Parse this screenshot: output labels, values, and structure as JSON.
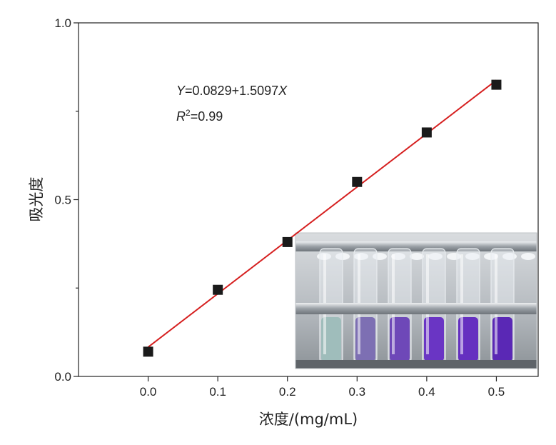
{
  "chart_data": {
    "type": "scatter",
    "xlabel": "浓度/(mg/mL)",
    "ylabel": "吸光度",
    "xlim": [
      -0.1,
      0.56
    ],
    "ylim": [
      0,
      1.0
    ],
    "x_ticks": [
      0.0,
      0.1,
      0.2,
      0.3,
      0.4,
      0.5
    ],
    "x_tick_labels": [
      "0.0",
      "0.1",
      "0.2",
      "0.3",
      "0.4",
      "0.5"
    ],
    "y_ticks": [
      0.0,
      0.25,
      0.5,
      0.75,
      1.0
    ],
    "y_tick_labels": [
      "0.0",
      "",
      "0.5",
      "",
      "1.0"
    ],
    "grid": false,
    "series": [
      {
        "marker": "square",
        "color": "#1a1a1a",
        "x": [
          0.0,
          0.1,
          0.2,
          0.3,
          0.4,
          0.5
        ],
        "y": [
          0.07,
          0.245,
          0.38,
          0.55,
          0.69,
          0.825
        ]
      }
    ],
    "fit_line": {
      "color": "#d62020",
      "intercept": 0.0829,
      "slope": 1.5097,
      "x_range": [
        0.0,
        0.5
      ]
    },
    "annotations": {
      "equation": {
        "y_var": "Y",
        "equals_text": "=0.0829+1.5097",
        "x_var": "X"
      },
      "r_squared": {
        "var": "R",
        "sup": "2",
        "value_text": "=0.99"
      }
    },
    "inset_photo": {
      "description": "test tubes in a metal rack",
      "tube_colors": [
        "#9fbdbb",
        "#7d6fb3",
        "#6e48b8",
        "#6a35c4",
        "#6530c0",
        "#5a28b5"
      ]
    }
  }
}
